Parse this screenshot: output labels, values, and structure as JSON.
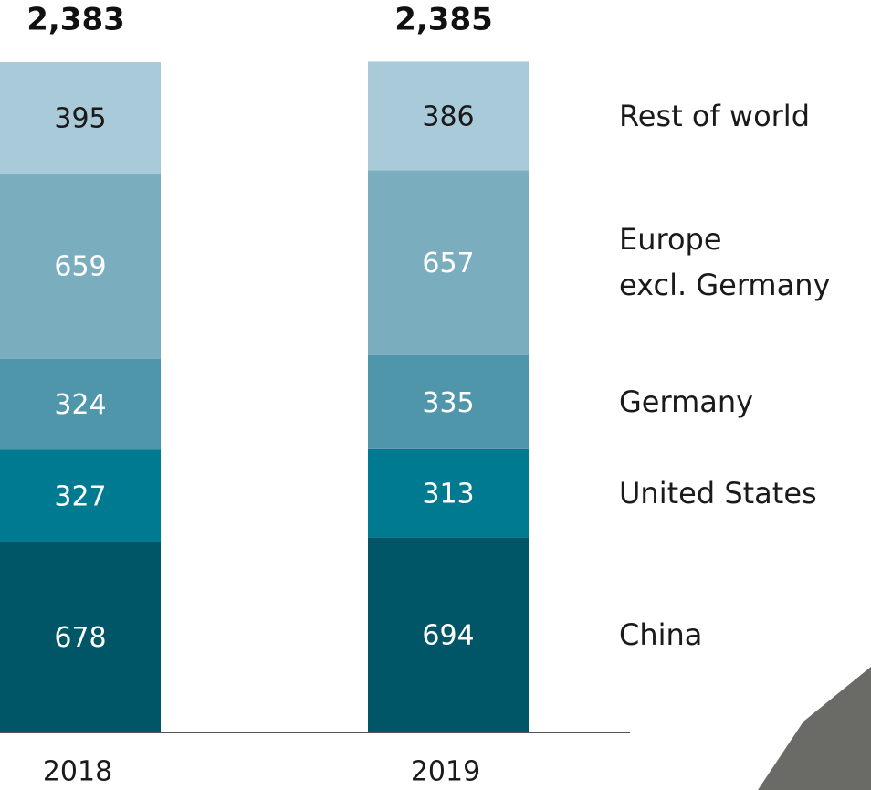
{
  "chart_data": {
    "type": "stacked-bar",
    "categories": [
      "2018",
      "2019"
    ],
    "series": [
      {
        "name": "China",
        "color": "#005566",
        "text_color": "#ffffff",
        "values": [
          678,
          694
        ]
      },
      {
        "name": "United States",
        "color": "#007a90",
        "text_color": "#ffffff",
        "values": [
          327,
          313
        ]
      },
      {
        "name": "Germany",
        "color": "#4f96ab",
        "text_color": "#ffffff",
        "values": [
          324,
          335
        ]
      },
      {
        "name": "Europe\nexcl. Germany",
        "color": "#7aaebf",
        "text_color": "#ffffff",
        "values": [
          659,
          657
        ]
      },
      {
        "name": "Rest of world",
        "color": "#a9cad8",
        "text_color": "#1a1a1a",
        "values": [
          395,
          386
        ]
      }
    ],
    "totals": [
      {
        "value": 2383,
        "label": "2,383"
      },
      {
        "value": 2385,
        "label": "2,385"
      }
    ]
  }
}
